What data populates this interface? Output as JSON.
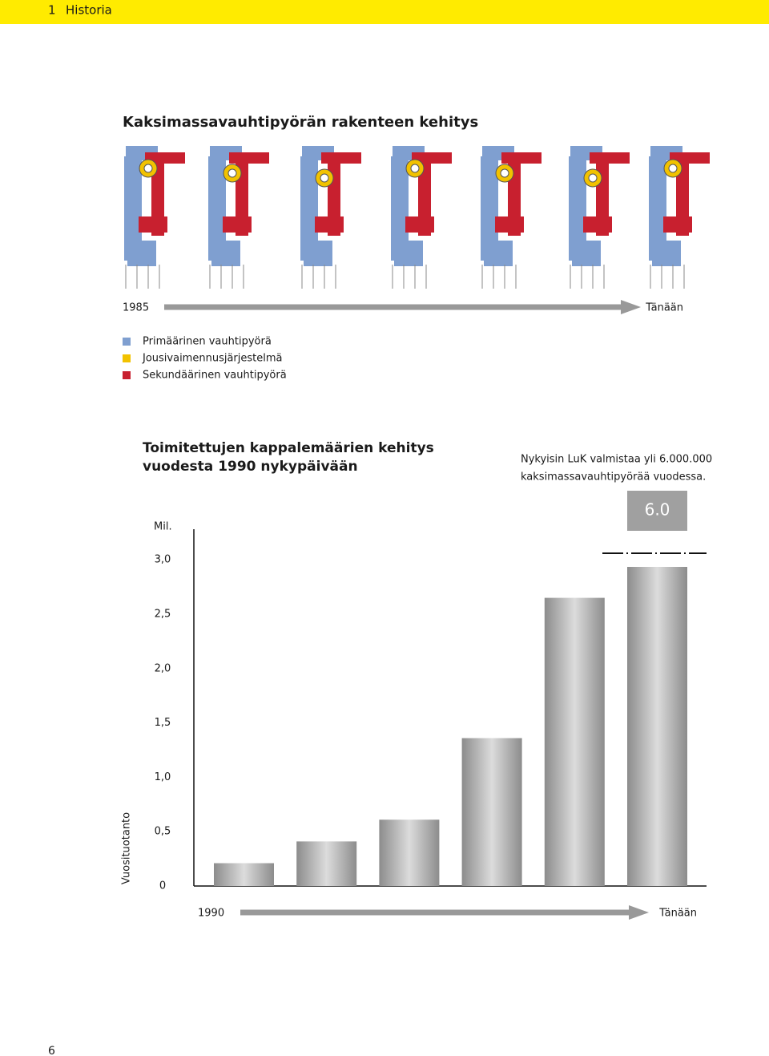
{
  "header": {
    "number": "1",
    "title": "Historia"
  },
  "section_title": "Kaksimassavauhtipyörän rakenteen kehitys",
  "timeline": {
    "start": "1985",
    "end": "Tänään"
  },
  "legend": [
    {
      "label": "Primäärinen vauhtipyörä",
      "color": "#7f9fd0"
    },
    {
      "label": "Jousivaimennusjärjestelmä",
      "color": "#f2c200"
    },
    {
      "label": "Sekundäärinen vauhtipyörä",
      "color": "#c8202f"
    }
  ],
  "chart_data": {
    "type": "bar",
    "title": [
      "Toimitettujen kappalemäärien kehitys",
      "vuodesta 1990 nykypäivään"
    ],
    "note": [
      "Nykyisin LuK valmistaa yli 6.000.000",
      "kaksimassavauhtipyörää vuodessa."
    ],
    "y_unit": "Mil.",
    "y_label": "Vuosituotanto",
    "x_start": "1990",
    "x_end": "Tänään",
    "categories": [
      null,
      null,
      null,
      null,
      null,
      null
    ],
    "values": [
      0.21,
      0.41,
      0.61,
      1.36,
      2.65,
      6.0
    ],
    "value_labels": [
      null,
      null,
      null,
      null,
      null,
      "6.0"
    ],
    "ylim": [
      0,
      3.2
    ],
    "yticks": [
      0,
      {
        "value": 0.5,
        "label": "0,5"
      },
      {
        "value": 1.0,
        "label": "1,0"
      },
      {
        "value": 1.5,
        "label": "1,5"
      },
      {
        "value": 2.0,
        "label": "2,0"
      },
      {
        "value": 2.5,
        "label": "2,5"
      },
      {
        "value": 3.0,
        "label": "3,0"
      }
    ],
    "axis_break": true
  },
  "page_number": "6"
}
